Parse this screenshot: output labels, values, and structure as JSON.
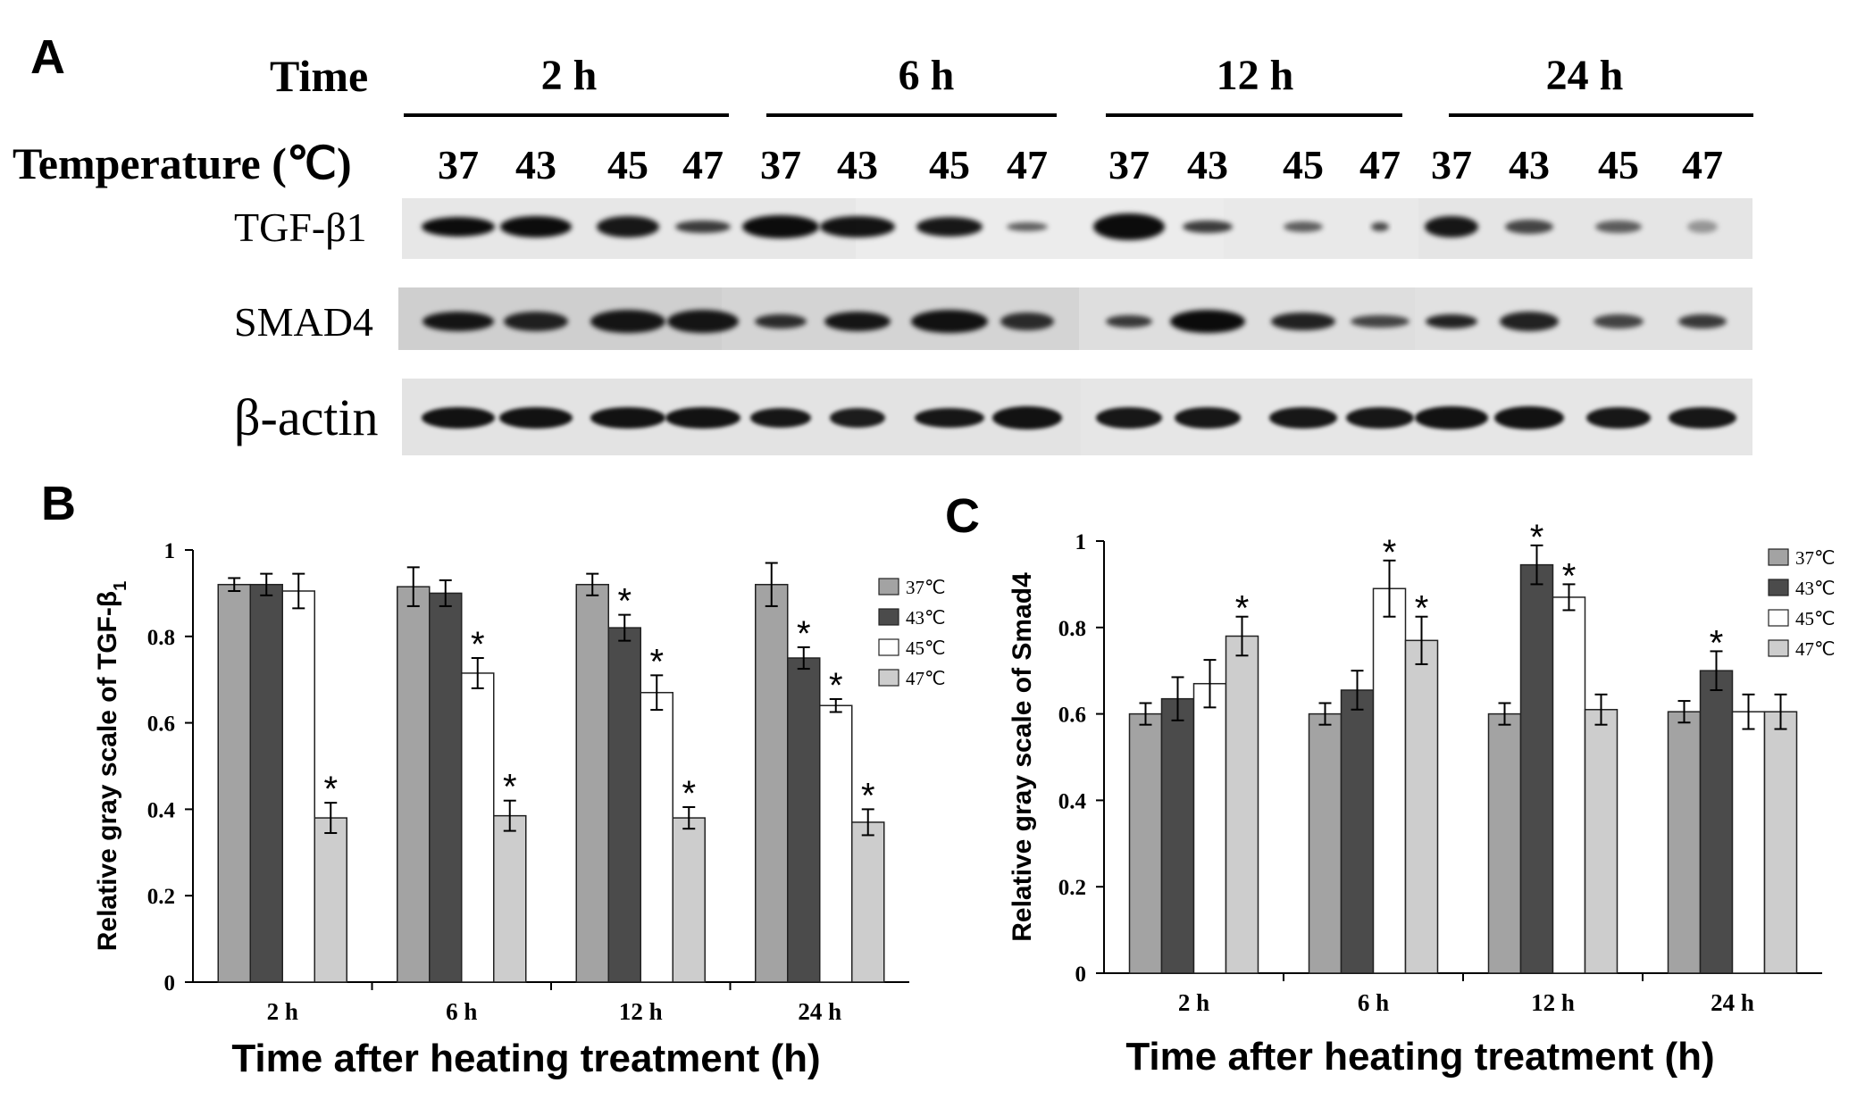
{
  "panels": {
    "A": {
      "letter": "A",
      "time_label": "Time",
      "temperature_label": "Temperature (℃)",
      "time_groups": [
        "2 h",
        "6 h",
        "12 h",
        "24 h"
      ],
      "temperatures": [
        "37",
        "43",
        "45",
        "47"
      ],
      "rows": [
        "TGF-β1",
        "SMAD4",
        "β-actin"
      ]
    },
    "B": {
      "letter": "B"
    },
    "C": {
      "letter": "C"
    }
  },
  "chart_data": [
    {
      "type": "bar",
      "panel": "B",
      "title": "",
      "categories": [
        "2 h",
        "6 h",
        "12 h",
        "24 h"
      ],
      "xlabel": "Time after heating treatment (h)",
      "ylabel": "Relative gray scale of TGF-β",
      "ylabel_subscript": "1",
      "ylim": [
        0,
        1
      ],
      "yticks": [
        "0",
        "0.2",
        "0.4",
        "0.6",
        "0.8",
        "1"
      ],
      "grid": false,
      "legend_position": "top-right",
      "series": [
        {
          "name": "37℃",
          "color": "#a3a3a3",
          "values": [
            0.92,
            0.915,
            0.92,
            0.92
          ],
          "errors": [
            0.015,
            0.045,
            0.025,
            0.05
          ],
          "significant": [
            false,
            false,
            false,
            false
          ]
        },
        {
          "name": "43℃",
          "color": "#4b4b4b",
          "values": [
            0.92,
            0.9,
            0.82,
            0.75
          ],
          "errors": [
            0.025,
            0.03,
            0.03,
            0.025
          ],
          "significant": [
            false,
            false,
            true,
            true
          ]
        },
        {
          "name": "45℃",
          "color": "#ffffff",
          "values": [
            0.905,
            0.715,
            0.67,
            0.64
          ],
          "errors": [
            0.04,
            0.035,
            0.04,
            0.015
          ],
          "significant": [
            false,
            true,
            true,
            true
          ]
        },
        {
          "name": "47℃",
          "color": "#cdcdcd",
          "values": [
            0.38,
            0.385,
            0.38,
            0.37
          ],
          "errors": [
            0.035,
            0.035,
            0.025,
            0.03
          ],
          "significant": [
            true,
            true,
            true,
            true
          ]
        }
      ]
    },
    {
      "type": "bar",
      "panel": "C",
      "title": "",
      "categories": [
        "2 h",
        "6 h",
        "12 h",
        "24 h"
      ],
      "xlabel": "Time after heating treatment (h)",
      "ylabel": "Relative gray scale of Smad4",
      "ylabel_subscript": "",
      "ylim": [
        0,
        1
      ],
      "yticks": [
        "0",
        "0.2",
        "0.4",
        "0.6",
        "0.8",
        "1"
      ],
      "grid": false,
      "legend_position": "top-right",
      "series": [
        {
          "name": "37℃",
          "color": "#a3a3a3",
          "values": [
            0.6,
            0.6,
            0.6,
            0.605
          ],
          "errors": [
            0.025,
            0.025,
            0.025,
            0.025
          ],
          "significant": [
            false,
            false,
            false,
            false
          ]
        },
        {
          "name": "43℃",
          "color": "#4b4b4b",
          "values": [
            0.635,
            0.655,
            0.945,
            0.7
          ],
          "errors": [
            0.05,
            0.045,
            0.045,
            0.045
          ],
          "significant": [
            false,
            false,
            true,
            true
          ]
        },
        {
          "name": "45℃",
          "color": "#ffffff",
          "values": [
            0.67,
            0.89,
            0.87,
            0.605
          ],
          "errors": [
            0.055,
            0.065,
            0.03,
            0.04
          ],
          "significant": [
            false,
            true,
            true,
            false
          ]
        },
        {
          "name": "47℃",
          "color": "#cdcdcd",
          "values": [
            0.78,
            0.77,
            0.61,
            0.605
          ],
          "errors": [
            0.045,
            0.055,
            0.035,
            0.04
          ],
          "significant": [
            true,
            true,
            false,
            false
          ]
        }
      ]
    }
  ]
}
